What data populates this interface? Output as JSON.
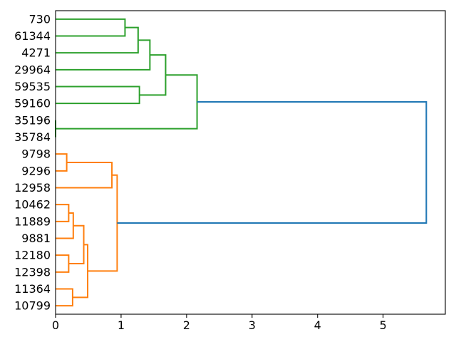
{
  "figure": {
    "background": "#ffffff",
    "frame_color": "#000000"
  },
  "chart_data": {
    "type": "dendrogram",
    "orientation": "right",
    "title": "",
    "xlabel": "",
    "ylabel": "",
    "grid": false,
    "legend": false,
    "xlim": [
      0,
      5.95
    ],
    "x_ticks": [
      0,
      1,
      2,
      3,
      4,
      5
    ],
    "leaf_labels": [
      "730",
      "61344",
      "4271",
      "29964",
      "59535",
      "59160",
      "35196",
      "35784",
      "9798",
      "9296",
      "12958",
      "10462",
      "11889",
      "9881",
      "12180",
      "12398",
      "11364",
      "10799"
    ],
    "colors": {
      "top_cluster": "#2ca02c",
      "bottom_cluster": "#ff7f0e",
      "root_link": "#1f77b4"
    },
    "links": [
      {
        "id": "G1",
        "a": "leaf:730",
        "b": "leaf:61344",
        "distance": 1.06,
        "color": "#2ca02c"
      },
      {
        "id": "G2",
        "a": "G1",
        "b": "leaf:4271",
        "distance": 1.26,
        "color": "#2ca02c"
      },
      {
        "id": "G3",
        "a": "G2",
        "b": "leaf:29964",
        "distance": 1.44,
        "color": "#2ca02c"
      },
      {
        "id": "G4",
        "a": "leaf:59535",
        "b": "leaf:59160",
        "distance": 1.28,
        "color": "#2ca02c"
      },
      {
        "id": "G5",
        "a": "G3",
        "b": "G4",
        "distance": 1.68,
        "color": "#2ca02c"
      },
      {
        "id": "G6",
        "a": "leaf:35196",
        "b": "leaf:35784",
        "distance": 0.0,
        "color": "#2ca02c"
      },
      {
        "id": "G7",
        "a": "G5",
        "b": "G6",
        "distance": 2.16,
        "color": "#2ca02c"
      },
      {
        "id": "O1",
        "a": "leaf:9798",
        "b": "leaf:9296",
        "distance": 0.17,
        "color": "#ff7f0e"
      },
      {
        "id": "O2",
        "a": "O1",
        "b": "leaf:12958",
        "distance": 0.86,
        "color": "#ff7f0e"
      },
      {
        "id": "O3",
        "a": "leaf:10462",
        "b": "leaf:11889",
        "distance": 0.2,
        "color": "#ff7f0e"
      },
      {
        "id": "O4",
        "a": "O3",
        "b": "leaf:9881",
        "distance": 0.27,
        "color": "#ff7f0e"
      },
      {
        "id": "O5",
        "a": "leaf:12180",
        "b": "leaf:12398",
        "distance": 0.2,
        "color": "#ff7f0e"
      },
      {
        "id": "O6",
        "a": "O4",
        "b": "O5",
        "distance": 0.43,
        "color": "#ff7f0e"
      },
      {
        "id": "O7",
        "a": "leaf:11364",
        "b": "leaf:10799",
        "distance": 0.26,
        "color": "#ff7f0e"
      },
      {
        "id": "O8",
        "a": "O6",
        "b": "O7",
        "distance": 0.49,
        "color": "#ff7f0e"
      },
      {
        "id": "O9",
        "a": "O2",
        "b": "O8",
        "distance": 0.94,
        "color": "#ff7f0e"
      },
      {
        "id": "ROOT",
        "a": "G7",
        "b": "O9",
        "distance": 5.66,
        "color": "#1f77b4"
      }
    ]
  }
}
